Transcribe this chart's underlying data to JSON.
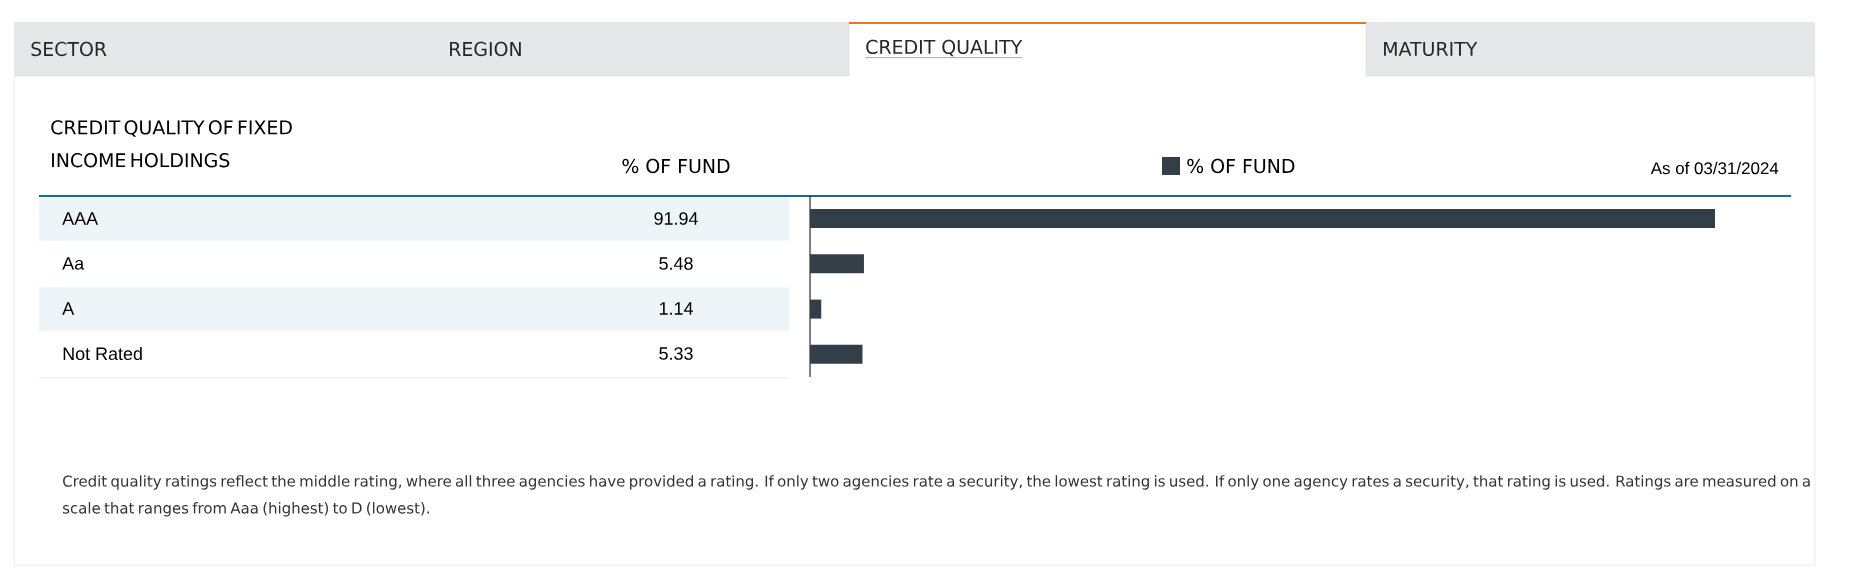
{
  "chart_data": {
    "type": "bar",
    "orientation": "horizontal",
    "title": "CREDIT QUALITY OF FIXED INCOME HOLDINGS",
    "subtitle": "As of 03/31/2024",
    "categories": [
      "AAA",
      "Aa",
      "A",
      "Not Rated"
    ],
    "series": [
      {
        "name": "% OF FUND",
        "color": "#333f48",
        "values": [
          91.94,
          5.48,
          1.14,
          5.33
        ]
      }
    ],
    "data_labels": true,
    "legend": "top",
    "annotations": [
      "SECTOR",
      "REGION",
      "CREDIT QUALITY",
      "MATURITY",
      "% OF FUND",
      "Credit quality ratings reflect the middle rating, where all three agencies have provided a rating. If only two agencies rate a security, the lowest rating is used. If only one agency rates a security, that rating is used. Ratings are measured on a scale that ranges from Aaa (highest) to D (lowest)."
    ]
  }
}
